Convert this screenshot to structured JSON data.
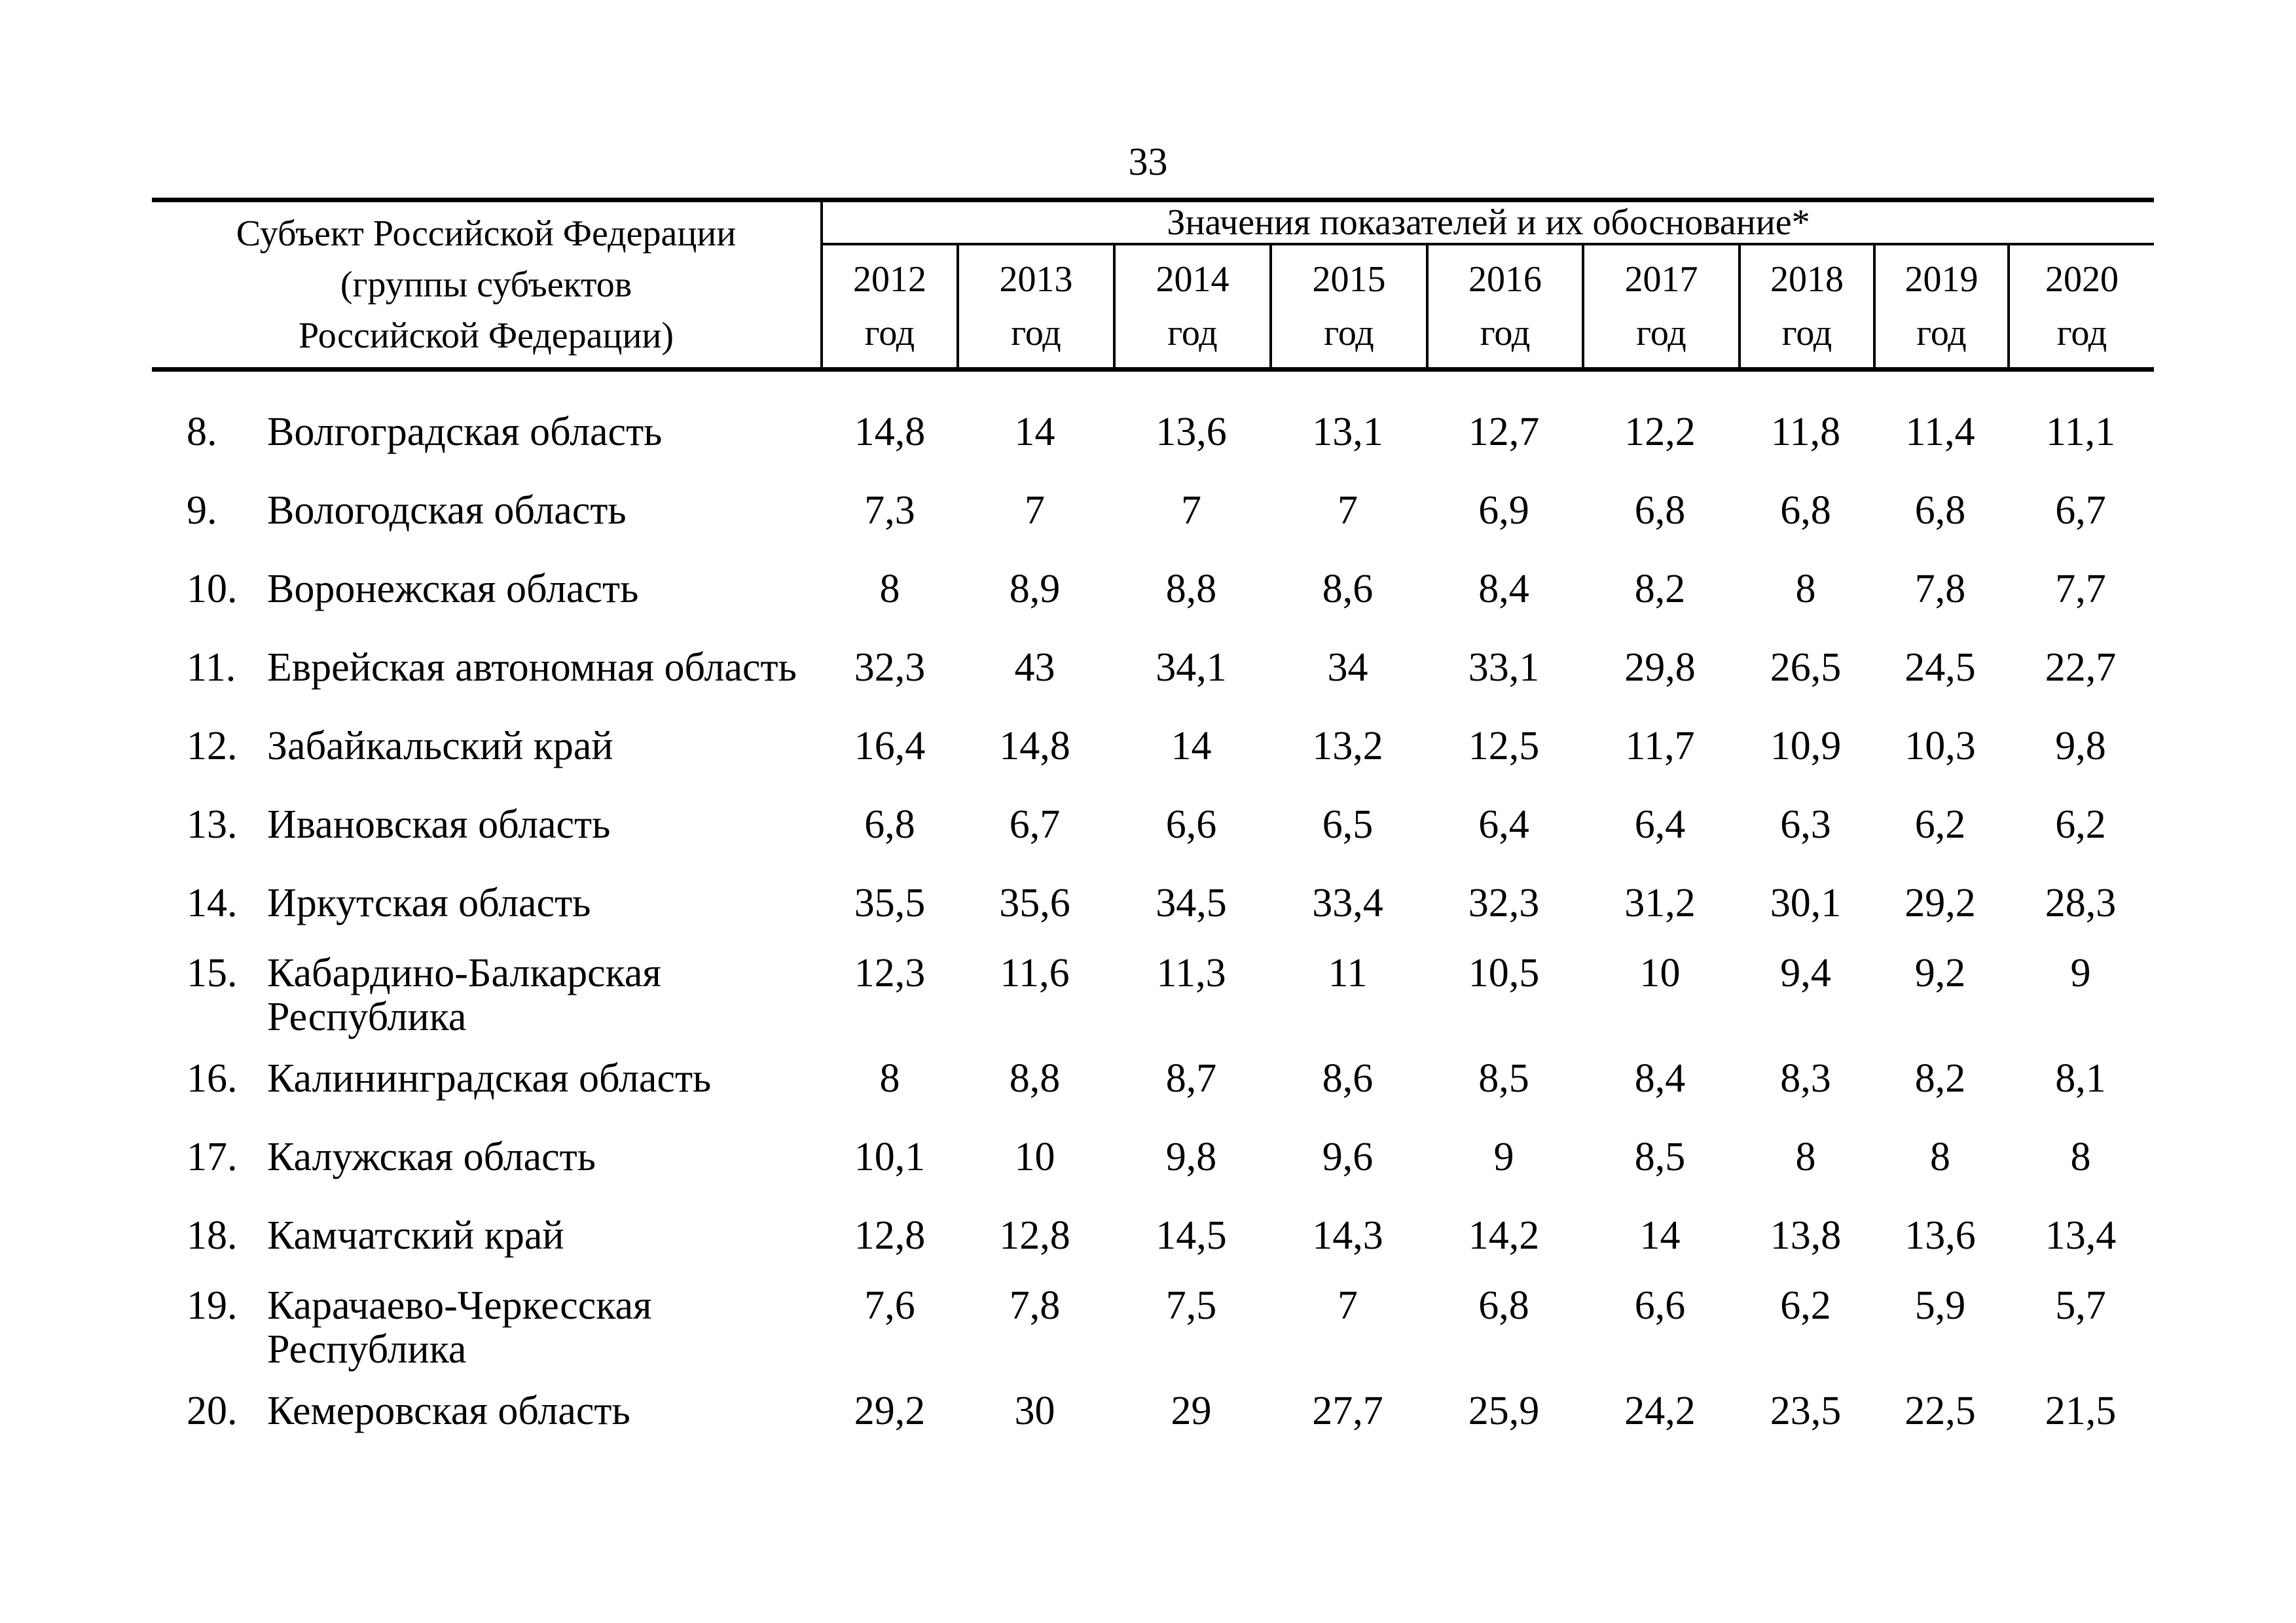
{
  "page": {
    "number": "33"
  },
  "table": {
    "header": {
      "subject_title_lines": [
        "Субъект Российской Федерации",
        "(группы субъектов",
        "Российской Федерации)"
      ],
      "values_title": "Значения показателей и их обоснование*",
      "year_columns": [
        {
          "year": "2012",
          "unit": "год"
        },
        {
          "year": "2013",
          "unit": "год"
        },
        {
          "year": "2014",
          "unit": "год"
        },
        {
          "year": "2015",
          "unit": "год"
        },
        {
          "year": "2016",
          "unit": "год"
        },
        {
          "year": "2017",
          "unit": "год"
        },
        {
          "year": "2018",
          "unit": "год"
        },
        {
          "year": "2019",
          "unit": "год"
        },
        {
          "year": "2020",
          "unit": "год"
        }
      ]
    },
    "rows": [
      {
        "num": "8.",
        "name": "Волгоградская область",
        "two_line": false,
        "values": [
          "14,8",
          "14",
          "13,6",
          "13,1",
          "12,7",
          "12,2",
          "11,8",
          "11,4",
          "11,1"
        ]
      },
      {
        "num": "9.",
        "name": "Вологодская область",
        "two_line": false,
        "values": [
          "7,3",
          "7",
          "7",
          "7",
          "6,9",
          "6,8",
          "6,8",
          "6,8",
          "6,7"
        ]
      },
      {
        "num": "10.",
        "name": "Воронежская область",
        "two_line": false,
        "values": [
          "8",
          "8,9",
          "8,8",
          "8,6",
          "8,4",
          "8,2",
          "8",
          "7,8",
          "7,7"
        ]
      },
      {
        "num": "11.",
        "name": "Еврейская автономная область",
        "two_line": false,
        "values": [
          "32,3",
          "43",
          "34,1",
          "34",
          "33,1",
          "29,8",
          "26,5",
          "24,5",
          "22,7"
        ]
      },
      {
        "num": "12.",
        "name": "Забайкальский край",
        "two_line": false,
        "values": [
          "16,4",
          "14,8",
          "14",
          "13,2",
          "12,5",
          "11,7",
          "10,9",
          "10,3",
          "9,8"
        ]
      },
      {
        "num": "13.",
        "name": "Ивановская область",
        "two_line": false,
        "values": [
          "6,8",
          "6,7",
          "6,6",
          "6,5",
          "6,4",
          "6,4",
          "6,3",
          "6,2",
          "6,2"
        ]
      },
      {
        "num": "14.",
        "name": "Иркутская область",
        "two_line": false,
        "values": [
          "35,5",
          "35,6",
          "34,5",
          "33,4",
          "32,3",
          "31,2",
          "30,1",
          "29,2",
          "28,3"
        ]
      },
      {
        "num": "15.",
        "name": "Кабардино-Балкарская Республика",
        "two_line": true,
        "values": [
          "12,3",
          "11,6",
          "11,3",
          "11",
          "10,5",
          "10",
          "9,4",
          "9,2",
          "9"
        ]
      },
      {
        "num": "16.",
        "name": "Калининградская область",
        "two_line": false,
        "values": [
          "8",
          "8,8",
          "8,7",
          "8,6",
          "8,5",
          "8,4",
          "8,3",
          "8,2",
          "8,1"
        ]
      },
      {
        "num": "17.",
        "name": "Калужская область",
        "two_line": false,
        "values": [
          "10,1",
          "10",
          "9,8",
          "9,6",
          "9",
          "8,5",
          "8",
          "8",
          "8"
        ]
      },
      {
        "num": "18.",
        "name": "Камчатский край",
        "two_line": false,
        "values": [
          "12,8",
          "12,8",
          "14,5",
          "14,3",
          "14,2",
          "14",
          "13,8",
          "13,6",
          "13,4"
        ]
      },
      {
        "num": "19.",
        "name": "Карачаево-Черкесская Республика",
        "two_line": true,
        "values": [
          "7,6",
          "7,8",
          "7,5",
          "7",
          "6,8",
          "6,6",
          "6,2",
          "5,9",
          "5,7"
        ]
      },
      {
        "num": "20.",
        "name": "Кемеровская область",
        "two_line": false,
        "values": [
          "29,2",
          "30",
          "29",
          "27,7",
          "25,9",
          "24,2",
          "23,5",
          "22,5",
          "21,5"
        ]
      }
    ]
  }
}
